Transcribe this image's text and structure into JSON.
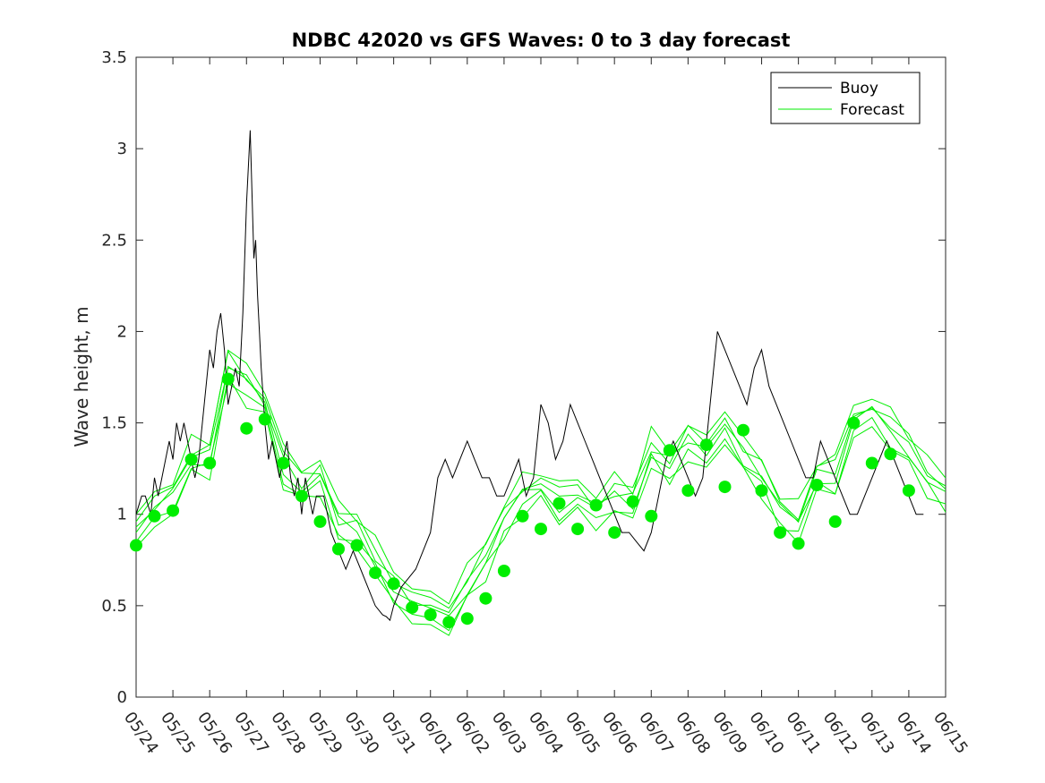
{
  "chart_data": {
    "type": "line",
    "title": "NDBC 42020 vs GFS Waves: 0 to 3 day forecast",
    "xlabel": "",
    "ylabel": "Wave height, m",
    "x_unit": "date (month/day)",
    "xlim": [
      "05/24",
      "06/15"
    ],
    "ylim": [
      0,
      3.5
    ],
    "yticks": [
      "0",
      "0.5",
      "1",
      "1.5",
      "2",
      "2.5",
      "3",
      "3.5"
    ],
    "xticks": [
      "05/24",
      "05/25",
      "05/26",
      "05/27",
      "05/28",
      "05/29",
      "05/30",
      "05/31",
      "06/01",
      "06/02",
      "06/03",
      "06/04",
      "06/05",
      "06/06",
      "06/07",
      "06/08",
      "06/09",
      "06/10",
      "06/11",
      "06/12",
      "06/13",
      "06/14",
      "06/15"
    ],
    "grid": false,
    "legend_position": "top-right",
    "colors": {
      "buoy": "#000000",
      "forecast": "#00ee00",
      "analysis": "#00ee00"
    },
    "series": [
      {
        "name": "Buoy",
        "style": "line",
        "x_days_from_0524": [
          0.0,
          0.15,
          0.25,
          0.4,
          0.5,
          0.6,
          0.7,
          0.8,
          0.9,
          1.0,
          1.1,
          1.2,
          1.3,
          1.4,
          1.5,
          1.6,
          1.7,
          1.8,
          1.9,
          2.0,
          2.1,
          2.2,
          2.3,
          2.4,
          2.5,
          2.6,
          2.7,
          2.8,
          2.9,
          3.0,
          3.1,
          3.2,
          3.25,
          3.3,
          3.35,
          3.4,
          3.5,
          3.6,
          3.7,
          3.8,
          3.9,
          4.0,
          4.1,
          4.2,
          4.3,
          4.4,
          4.5,
          4.6,
          4.7,
          4.8,
          4.9,
          5.0,
          5.1,
          5.2,
          5.3,
          5.5,
          5.7,
          5.9,
          6.1,
          6.3,
          6.5,
          6.7,
          6.8,
          6.9,
          7.0,
          7.2,
          7.4,
          7.6,
          7.8,
          8.0,
          8.2,
          8.4,
          8.6,
          8.8,
          9.0,
          9.2,
          9.4,
          9.6,
          9.8,
          10.0,
          10.2,
          10.4,
          10.6,
          10.8,
          11.0,
          11.2,
          11.4,
          11.6,
          11.8,
          12.0,
          12.2,
          12.4,
          12.6,
          12.8,
          13.0,
          13.2,
          13.4,
          13.6,
          13.8,
          14.0,
          14.2,
          14.4,
          14.6,
          14.8,
          15.0,
          15.2,
          15.4,
          15.6,
          15.8,
          16.0,
          16.2,
          16.4,
          16.6,
          16.8,
          17.0,
          17.2,
          17.4,
          17.6,
          17.8,
          18.0,
          18.2,
          18.4,
          18.6,
          18.8,
          19.0,
          19.2,
          19.4,
          19.6,
          19.8,
          20.0,
          20.2,
          20.4,
          20.6,
          20.8,
          21.0,
          21.2,
          21.4
        ],
        "values": [
          1.0,
          1.1,
          1.1,
          1.0,
          1.2,
          1.1,
          1.2,
          1.3,
          1.4,
          1.3,
          1.5,
          1.4,
          1.5,
          1.4,
          1.3,
          1.2,
          1.3,
          1.5,
          1.7,
          1.9,
          1.8,
          2.0,
          2.1,
          1.9,
          1.6,
          1.7,
          1.8,
          1.7,
          2.1,
          2.7,
          3.1,
          2.4,
          2.5,
          2.2,
          2.0,
          1.8,
          1.5,
          1.3,
          1.4,
          1.3,
          1.2,
          1.3,
          1.4,
          1.2,
          1.1,
          1.2,
          1.0,
          1.2,
          1.1,
          1.0,
          1.1,
          1.1,
          1.1,
          1.0,
          0.9,
          0.8,
          0.7,
          0.8,
          0.7,
          0.6,
          0.5,
          0.45,
          0.44,
          0.42,
          0.5,
          0.6,
          0.65,
          0.7,
          0.8,
          0.9,
          1.2,
          1.3,
          1.2,
          1.3,
          1.4,
          1.3,
          1.2,
          1.2,
          1.1,
          1.1,
          1.2,
          1.3,
          1.1,
          1.2,
          1.6,
          1.5,
          1.3,
          1.4,
          1.6,
          1.5,
          1.4,
          1.3,
          1.2,
          1.1,
          1.0,
          0.9,
          0.9,
          0.85,
          0.8,
          0.9,
          1.1,
          1.3,
          1.4,
          1.3,
          1.2,
          1.1,
          1.2,
          1.6,
          2.0,
          1.9,
          1.8,
          1.7,
          1.6,
          1.8,
          1.9,
          1.7,
          1.6,
          1.5,
          1.4,
          1.3,
          1.2,
          1.2,
          1.4,
          1.3,
          1.2,
          1.1,
          1.0,
          1.0,
          1.1,
          1.2,
          1.3,
          1.4,
          1.3,
          1.2,
          1.1,
          1.0,
          1.0
        ]
      },
      {
        "name": "Forecast",
        "style": "line",
        "x_days_from_0524": [
          0.0,
          0.5,
          1.0,
          1.5,
          2.0,
          2.5,
          3.0,
          3.5,
          4.0,
          4.5,
          5.0,
          5.5,
          6.0,
          6.5,
          7.0,
          7.5,
          8.0,
          8.5,
          9.0,
          9.5,
          10.0,
          10.5,
          11.0,
          11.5,
          12.0,
          12.5,
          13.0,
          13.5,
          14.0,
          14.5,
          15.0,
          15.5,
          16.0,
          16.5,
          17.0,
          17.5,
          18.0,
          18.5,
          19.0,
          19.5,
          20.0,
          20.5,
          21.0,
          21.5,
          22.0
        ],
        "values": [
          0.9,
          1.0,
          1.1,
          1.3,
          1.3,
          1.8,
          1.7,
          1.6,
          1.25,
          1.15,
          1.2,
          0.95,
          0.9,
          0.75,
          0.6,
          0.5,
          0.45,
          0.45,
          0.6,
          0.75,
          0.95,
          1.1,
          1.15,
          1.05,
          1.1,
          1.0,
          1.1,
          1.05,
          1.35,
          1.25,
          1.4,
          1.3,
          1.5,
          1.3,
          1.2,
          1.0,
          0.95,
          1.2,
          1.2,
          1.5,
          1.55,
          1.45,
          1.35,
          1.2,
          1.1
        ]
      },
      {
        "name": "",
        "style": "markers",
        "x_days_from_0524": [
          0.0,
          0.5,
          1.0,
          1.5,
          2.0,
          2.5,
          3.0,
          3.5,
          4.0,
          4.5,
          5.0,
          5.5,
          6.0,
          6.5,
          7.0,
          7.5,
          8.0,
          8.5,
          9.0,
          9.5,
          10.0,
          10.5,
          11.0,
          11.5,
          12.0,
          12.5,
          13.0,
          13.5,
          14.0,
          14.5,
          15.0,
          15.5,
          16.0,
          16.5,
          17.0,
          17.5,
          18.0,
          18.5,
          19.0,
          19.5,
          20.0,
          20.5,
          21.0
        ],
        "values": [
          0.83,
          0.99,
          1.02,
          1.3,
          1.28,
          1.74,
          1.47,
          1.52,
          1.28,
          1.1,
          0.96,
          0.81,
          0.83,
          0.68,
          0.62,
          0.49,
          0.45,
          0.41,
          0.43,
          0.54,
          0.69,
          0.99,
          0.92,
          1.06,
          0.92,
          1.05,
          0.9,
          1.07,
          0.99,
          1.35,
          1.13,
          1.38,
          1.15,
          1.46,
          1.13,
          0.9,
          0.84,
          1.16,
          0.96,
          1.5,
          1.28,
          1.33,
          1.13
        ]
      }
    ]
  }
}
